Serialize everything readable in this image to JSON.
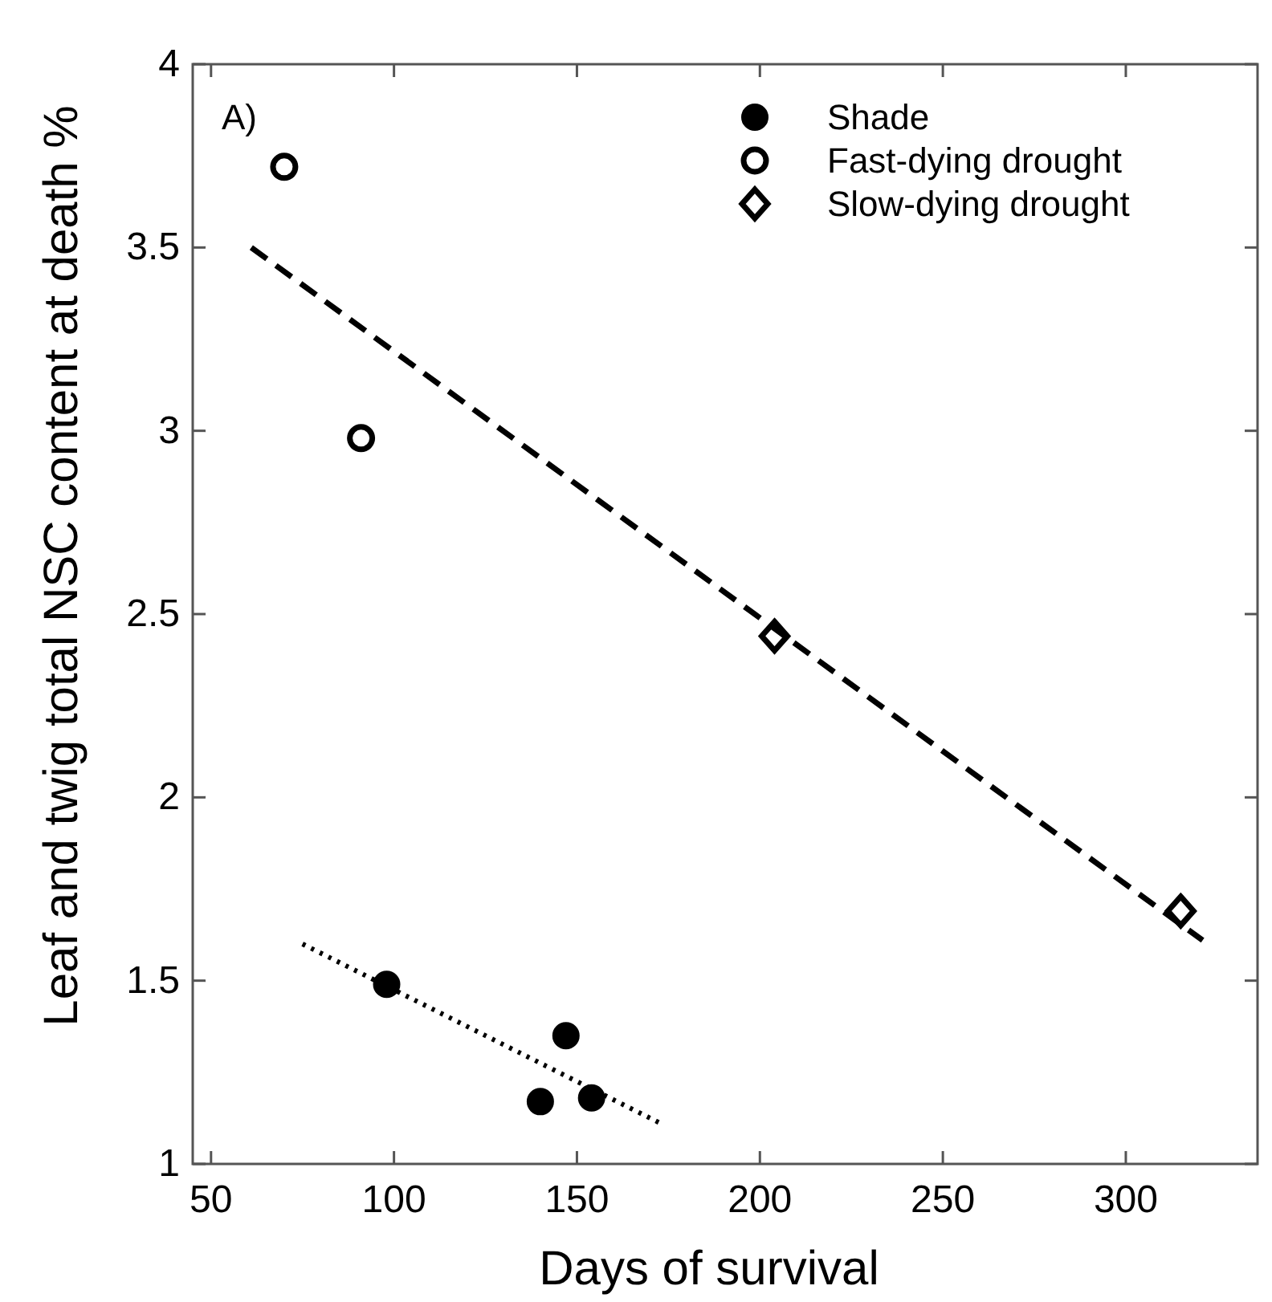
{
  "chart_data": {
    "type": "scatter",
    "xlabel": "Days of survival",
    "ylabel": "Leaf and twig total NSC content at death %",
    "annotations": [
      "A)"
    ],
    "xlim": [
      45,
      336
    ],
    "xticks": [
      50,
      100,
      150,
      200,
      250,
      300
    ],
    "ylim": [
      1,
      4
    ],
    "yticks": [
      1,
      1.5,
      2,
      2.5,
      3,
      3.5,
      4
    ],
    "grid": false,
    "legend": "top right",
    "series": [
      {
        "name": "Shade",
        "marker": "circle",
        "color": "#000000",
        "x": [
          98,
          140,
          147,
          154
        ],
        "values": [
          1.49,
          1.17,
          1.35,
          1.18
        ]
      },
      {
        "name": "Fast-dying drought",
        "marker": "circle",
        "color": "#ffffff",
        "x": [
          70,
          91
        ],
        "values": [
          3.72,
          2.98
        ]
      },
      {
        "name": "Slow-dying drought",
        "marker": "diamond",
        "color": "#ffffff",
        "x": [
          204,
          315
        ],
        "values": [
          2.44,
          1.69
        ]
      },
      {
        "type": "line",
        "marker": "none",
        "line_style": "dashed",
        "color": "#000000",
        "x": [
          61,
          321
        ],
        "values": [
          3.5,
          1.61
        ]
      },
      {
        "type": "line",
        "marker": "none",
        "line_style": "dotted",
        "color": "#000000",
        "x": [
          75,
          173
        ],
        "values": [
          1.6,
          1.11
        ]
      }
    ]
  }
}
